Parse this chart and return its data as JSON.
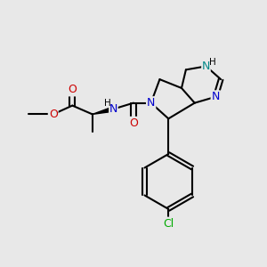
{
  "background_color": "#e8e8e8",
  "atom_colors": {
    "C": "#000000",
    "N": "#0000cc",
    "O": "#cc0000",
    "Cl": "#00aa00",
    "H": "#000000",
    "NH": "#008888"
  },
  "bond_lw": 1.5,
  "font_size": 9,
  "font_size_small": 7.5
}
